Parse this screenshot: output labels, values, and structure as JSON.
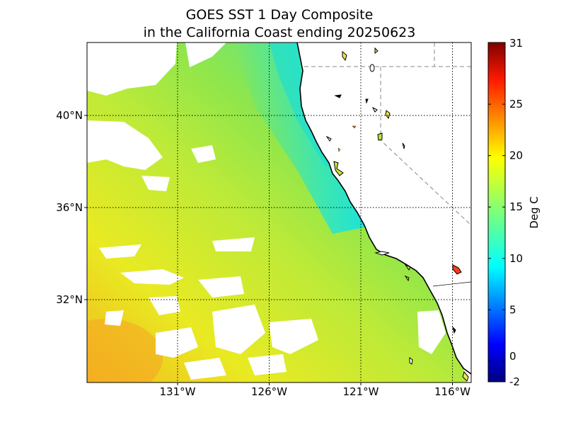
{
  "title": {
    "line1": "GOES SST 1 Day Composite",
    "line2": "in the California Coast ending 20250623"
  },
  "map": {
    "lat_labels": [
      "40°N",
      "36°N",
      "32°N"
    ],
    "lon_labels": [
      "131°W",
      "126°W",
      "121°W",
      "116°W"
    ],
    "lat_values": [
      40,
      36,
      32
    ],
    "lon_values": [
      -131,
      -126,
      -121,
      -116
    ],
    "land_color": "#ffffff",
    "coast_color": "#000000"
  },
  "colorbar": {
    "label": "Deg C",
    "ticks": [
      "31",
      "25",
      "20",
      "15",
      "10",
      "5",
      "0",
      "-2"
    ],
    "tick_values": [
      31,
      25,
      20,
      15,
      10,
      5,
      0,
      -2
    ],
    "min": -2,
    "max": 31,
    "colormap": "jet"
  }
}
